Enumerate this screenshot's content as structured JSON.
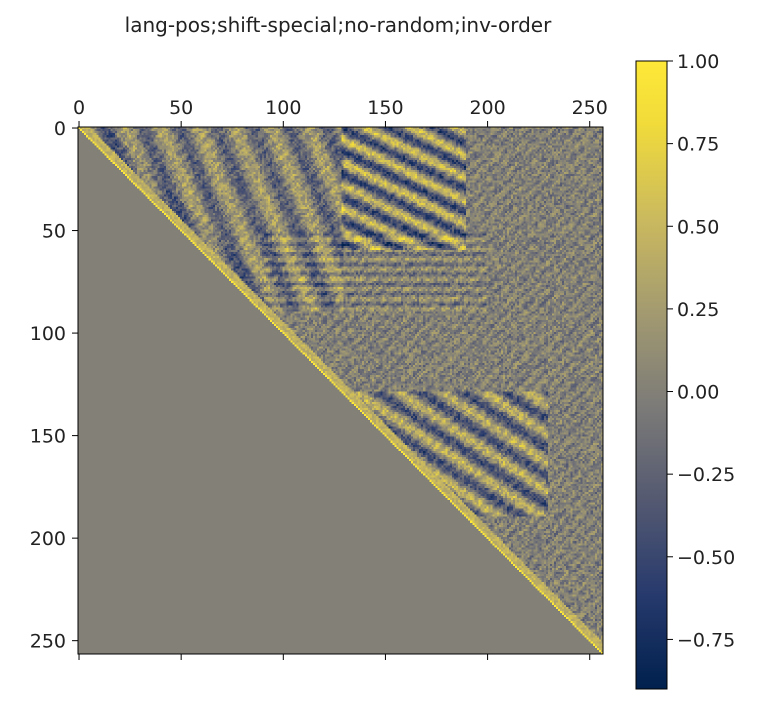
{
  "chart_data": {
    "type": "heatmap",
    "title": "lang-pos;shift-special;no-random;inv-order",
    "matrix_size": 257,
    "x_ticks": [
      0,
      50,
      100,
      150,
      200,
      250
    ],
    "y_ticks": [
      0,
      50,
      100,
      150,
      200,
      250
    ],
    "x_tick_labels": [
      "0",
      "50",
      "100",
      "150",
      "200",
      "250"
    ],
    "y_tick_labels": [
      "0",
      "50",
      "100",
      "150",
      "200",
      "250"
    ],
    "x_axis_position": "top",
    "colorbar": {
      "colormap": "cividis",
      "vmin": -0.9,
      "vmax": 1.0,
      "ticks": [
        1.0,
        0.75,
        0.5,
        0.25,
        0.0,
        -0.25,
        -0.5,
        -0.75
      ],
      "tick_labels": [
        "1.00",
        "0.75",
        "0.50",
        "0.25",
        "0.00",
        "−0.25",
        "−0.50",
        "−0.75"
      ]
    },
    "lower_triangle_value": 0.0,
    "diagonal_value": 1.0
  }
}
